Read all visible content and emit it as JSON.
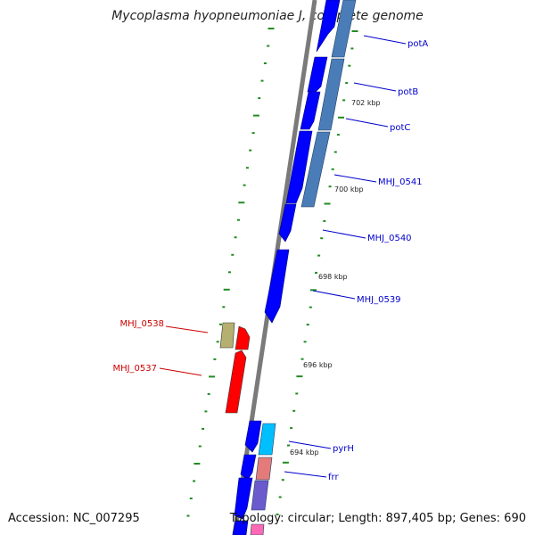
{
  "title": "Mycoplasma hyopneumoniae J, complete genome",
  "footer": {
    "accession": "Accession: NC_007295",
    "summary": "Topology: circular; Length: 897,405 bp; Genes: 690"
  },
  "colors": {
    "backbone": "#7f7f7f",
    "forward_gene": "#0000ff",
    "ruler_tick": "#228b22",
    "label_blue": "#0000cc",
    "label_red": "#cc0000"
  },
  "gene_labels": [
    {
      "id": "potA",
      "text": "potA",
      "color": "#0000cc"
    },
    {
      "id": "potB",
      "text": "potB",
      "color": "#0000cc"
    },
    {
      "id": "potC",
      "text": "potC",
      "color": "#0000cc"
    },
    {
      "id": "mhj0541",
      "text": "MHJ_0541",
      "color": "#0000cc"
    },
    {
      "id": "mhj0540",
      "text": "MHJ_0540",
      "color": "#0000cc"
    },
    {
      "id": "mhj0539",
      "text": "MHJ_0539",
      "color": "#0000cc"
    },
    {
      "id": "mhj0538",
      "text": "MHJ_0538",
      "color": "#cc0000"
    },
    {
      "id": "mhj0537",
      "text": "MHJ_0537",
      "color": "#cc0000"
    },
    {
      "id": "pyrh",
      "text": "pyrH",
      "color": "#0000cc"
    },
    {
      "id": "frr",
      "text": "frr",
      "color": "#0000cc"
    }
  ],
  "ruler_labels": [
    {
      "id": "kbp702",
      "text": "702 kbp"
    },
    {
      "id": "kbp700",
      "text": "700 kbp"
    },
    {
      "id": "kbp698",
      "text": "698 kbp"
    },
    {
      "id": "kbp696",
      "text": "696 kbp"
    },
    {
      "id": "kbp694",
      "text": "694 kbp"
    }
  ]
}
